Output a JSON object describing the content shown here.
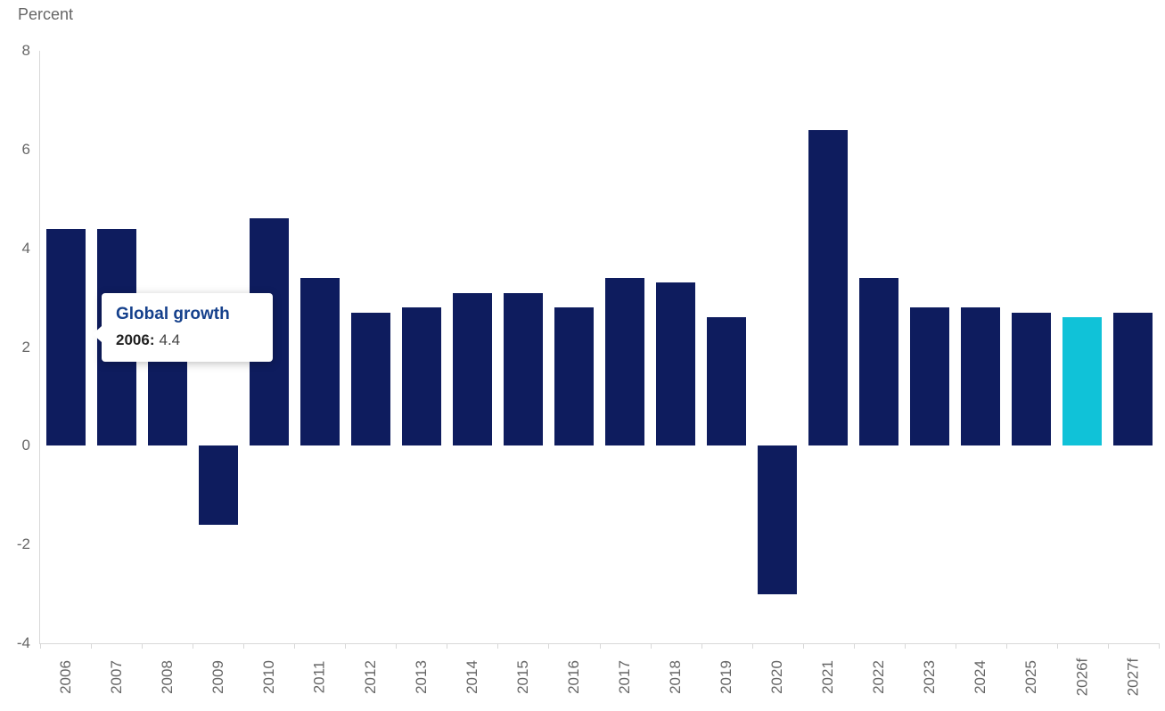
{
  "chart_data": {
    "type": "bar",
    "title": "",
    "ylabel": "Percent",
    "xlabel": "",
    "categories": [
      "2006",
      "2007",
      "2008",
      "2009",
      "2010",
      "2011",
      "2012",
      "2013",
      "2014",
      "2015",
      "2016",
      "2017",
      "2018",
      "2019",
      "2020",
      "2021",
      "2022",
      "2023",
      "2024",
      "2025",
      "2026f",
      "2027f"
    ],
    "series": [
      {
        "name": "Global growth",
        "values": [
          4.4,
          4.4,
          2.1,
          -1.6,
          4.6,
          3.4,
          2.7,
          2.8,
          3.1,
          3.1,
          2.8,
          3.4,
          3.3,
          2.6,
          -3.0,
          6.4,
          3.4,
          2.8,
          2.8,
          2.7,
          2.6,
          2.7
        ]
      }
    ],
    "ylim": [
      -4,
      8
    ],
    "yticks": [
      8,
      6,
      4,
      2,
      0,
      -2,
      -4
    ],
    "grid": false,
    "legend": "none",
    "highlight_category": "2026f"
  },
  "colors": {
    "bar": "#0e1c5e",
    "highlight": "#10c2d8",
    "tooltip_title": "#16418c",
    "axis_text": "#666666"
  },
  "tooltip": {
    "title": "Global growth",
    "label": "2006:",
    "value": "4.4"
  }
}
